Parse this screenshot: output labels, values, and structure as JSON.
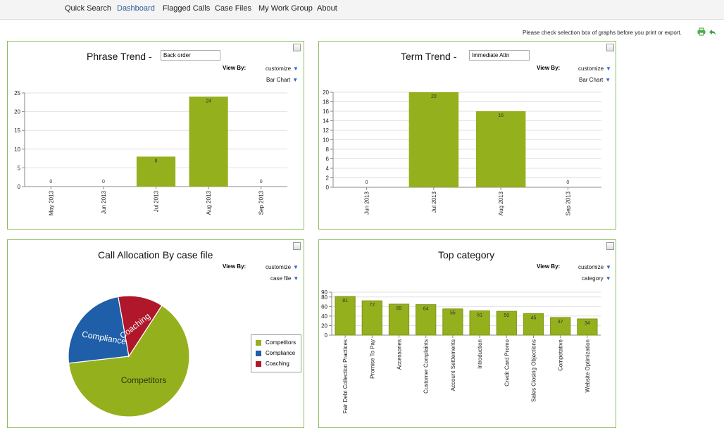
{
  "nav": {
    "items": [
      "Quick Search",
      "Dashboard",
      "Flagged Calls",
      "Case Files",
      "My Work Group",
      "About"
    ],
    "active": "Dashboard"
  },
  "notice": "Please check selection box of graphs before you print or export.",
  "icons": {
    "print": "printer-icon",
    "back": "green-arrow-back-icon"
  },
  "colors": {
    "bar": "#95b01d",
    "border": "#8cbd5f",
    "competitors": "#95b01d",
    "compliance": "#1f5ea8",
    "coaching": "#b0172b"
  },
  "panels": {
    "phrase": {
      "title": "Phrase Trend -",
      "input_value": "Back order",
      "view_by": "View By:",
      "dd1": "customize",
      "dd2": "Bar Chart"
    },
    "term": {
      "title": "Term Trend -",
      "input_value": "Immediate Attn",
      "view_by": "View By:",
      "dd1": "customize",
      "dd2": "Bar Chart"
    },
    "alloc": {
      "title": "Call Allocation By  case file",
      "view_by": "View By:",
      "dd1": "customize",
      "dd2": "case file"
    },
    "topcat": {
      "title": "Top  category",
      "view_by": "View By:",
      "dd1": "customize",
      "dd2": "category"
    }
  },
  "chart_data": [
    {
      "type": "bar",
      "categories": [
        "May 2013",
        "Jun 2013",
        "Jul 2013",
        "Aug 2013",
        "Sep 2013"
      ],
      "values": [
        0,
        0,
        8,
        24,
        0
      ],
      "ylim": [
        0,
        25
      ],
      "yticks": [
        0,
        5,
        10,
        15,
        20,
        25
      ],
      "grid": true
    },
    {
      "type": "bar",
      "categories": [
        "Jun 2013",
        "Jul 2013",
        "Aug 2013",
        "Sep 2013"
      ],
      "values": [
        0,
        20,
        16,
        0
      ],
      "ylim": [
        0,
        20
      ],
      "yticks": [
        0,
        2,
        4,
        6,
        8,
        10,
        12,
        14,
        16,
        18,
        20
      ],
      "grid": true
    },
    {
      "type": "pie",
      "categories": [
        "Competitors",
        "Compliance",
        "Coaching"
      ],
      "values": [
        64,
        24,
        12
      ],
      "legend": "right"
    },
    {
      "type": "bar",
      "categories": [
        "Fair Debt Collection Practices",
        "Promise To Pay",
        "Accessories",
        "Customer Complaints",
        "Account Settlements",
        "Introduction",
        "Credit Card Promo",
        "Sales Closing Objections",
        "Competative",
        "Website Optimization"
      ],
      "values": [
        81,
        72,
        65,
        64,
        55,
        51,
        50,
        45,
        37,
        34
      ],
      "ylim": [
        0,
        90
      ],
      "yticks": [
        0,
        20,
        40,
        60,
        80,
        90
      ],
      "grid": true
    }
  ]
}
